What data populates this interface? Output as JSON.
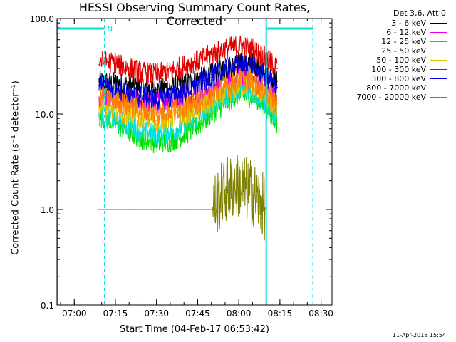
{
  "chart_data": {
    "type": "line",
    "title": "HESSI Observing Summary Count Rates, Corrected",
    "xlabel": "Start Time (04-Feb-17 06:53:42)",
    "ylabel": "Corrected Count Rate (s⁻¹ detector⁻¹)",
    "y_scale": "log",
    "ylim": [
      0.1,
      100.0
    ],
    "xlim": [
      "06:53:42",
      "08:34:00"
    ],
    "x_ticks": [
      "07:00",
      "07:15",
      "07:30",
      "07:45",
      "08:00",
      "08:15",
      "08:30"
    ],
    "y_ticks": [
      "0.1",
      "1.0",
      "10.0",
      "100.0"
    ],
    "legend_title": "Det 3,6, Att 0",
    "legend_position": "right, outside plot",
    "grid": false,
    "series": [
      {
        "name": "3 - 6 keV",
        "color": "#000000",
        "x": [
          "07:09",
          "07:15",
          "07:20",
          "07:25",
          "07:30",
          "07:35",
          "07:40",
          "07:45",
          "07:50",
          "07:55",
          "08:00",
          "08:05",
          "08:10",
          "08:14"
        ],
        "y": [
          22,
          21,
          20,
          19,
          18,
          19,
          21,
          23,
          26,
          30,
          34,
          33,
          27,
          22
        ]
      },
      {
        "name": "6 - 12 keV",
        "color": "#e000e0",
        "x": [
          "07:09",
          "07:15",
          "07:20",
          "07:25",
          "07:30",
          "07:35",
          "07:40",
          "07:45",
          "07:50",
          "07:55",
          "08:00",
          "08:05",
          "08:10",
          "08:14"
        ],
        "y": [
          14,
          14,
          14,
          13,
          13,
          14,
          15,
          16,
          18,
          21,
          24,
          23,
          18,
          14
        ]
      },
      {
        "name": "12 - 25 keV",
        "color": "#00e000",
        "x": [
          "07:09",
          "07:15",
          "07:20",
          "07:25",
          "07:30",
          "07:35",
          "07:40",
          "07:45",
          "07:50",
          "07:55",
          "08:00",
          "08:05",
          "08:10",
          "08:14"
        ],
        "y": [
          9.5,
          8.0,
          6.5,
          5.5,
          5.0,
          5.2,
          6.0,
          7.5,
          10,
          13,
          16,
          15,
          12,
          8
        ]
      },
      {
        "name": "25 - 50 keV",
        "color": "#00e0e0",
        "x": [
          "07:09",
          "07:15",
          "07:20",
          "07:25",
          "07:30",
          "07:35",
          "07:40",
          "07:45",
          "07:50",
          "07:55",
          "08:00",
          "08:05",
          "08:10",
          "08:14"
        ],
        "y": [
          10,
          9,
          7.5,
          6.5,
          6.0,
          6.5,
          7.5,
          9,
          12,
          15,
          18,
          17,
          13,
          9
        ]
      },
      {
        "name": "50 - 100 keV",
        "color": "#e0c000",
        "x": [
          "07:09",
          "07:15",
          "07:20",
          "07:25",
          "07:30",
          "07:35",
          "07:40",
          "07:45",
          "07:50",
          "07:55",
          "08:00",
          "08:05",
          "08:10",
          "08:14"
        ],
        "y": [
          12,
          11,
          10,
          9,
          8.5,
          9,
          10,
          11,
          13,
          16,
          20,
          19,
          15,
          11
        ]
      },
      {
        "name": "100 - 300 keV",
        "color": "#e00000",
        "x": [
          "07:09",
          "07:15",
          "07:20",
          "07:25",
          "07:30",
          "07:35",
          "07:40",
          "07:45",
          "07:50",
          "07:55",
          "08:00",
          "08:05",
          "08:10",
          "08:14"
        ],
        "y": [
          36,
          34,
          30,
          27,
          26,
          28,
          32,
          36,
          42,
          48,
          52,
          48,
          38,
          30
        ]
      },
      {
        "name": "300 - 800 keV",
        "color": "#0000e0",
        "x": [
          "07:09",
          "07:15",
          "07:20",
          "07:25",
          "07:30",
          "07:35",
          "07:40",
          "07:45",
          "07:50",
          "07:55",
          "08:00",
          "08:05",
          "08:10",
          "08:14"
        ],
        "y": [
          20,
          18,
          16,
          15,
          14,
          15,
          17,
          20,
          24,
          29,
          33,
          31,
          25,
          19
        ]
      },
      {
        "name": "800 - 7000 keV",
        "color": "#ff8000",
        "x": [
          "07:09",
          "07:15",
          "07:20",
          "07:25",
          "07:30",
          "07:35",
          "07:40",
          "07:45",
          "07:50",
          "07:55",
          "08:00",
          "08:05",
          "08:10",
          "08:14"
        ],
        "y": [
          15,
          14,
          12,
          11,
          10,
          11,
          12,
          13,
          16,
          19,
          23,
          22,
          17,
          13
        ]
      },
      {
        "name": "7000 - 20000 keV",
        "color": "#808000",
        "x": [
          "07:09",
          "07:12",
          "07:20",
          "07:30",
          "07:40",
          "07:46",
          "07:50",
          "07:55",
          "08:00",
          "08:05",
          "08:10"
        ],
        "y": [
          1.0,
          1.0,
          1.0,
          1.0,
          1.0,
          1.0,
          1.0,
          1.6,
          1.8,
          1.5,
          1.0
        ]
      }
    ],
    "annotations": [
      {
        "type": "band",
        "label": "N",
        "color": "#00e0e0"
      }
    ],
    "timestamp": "11-Apr-2018 15:54"
  }
}
